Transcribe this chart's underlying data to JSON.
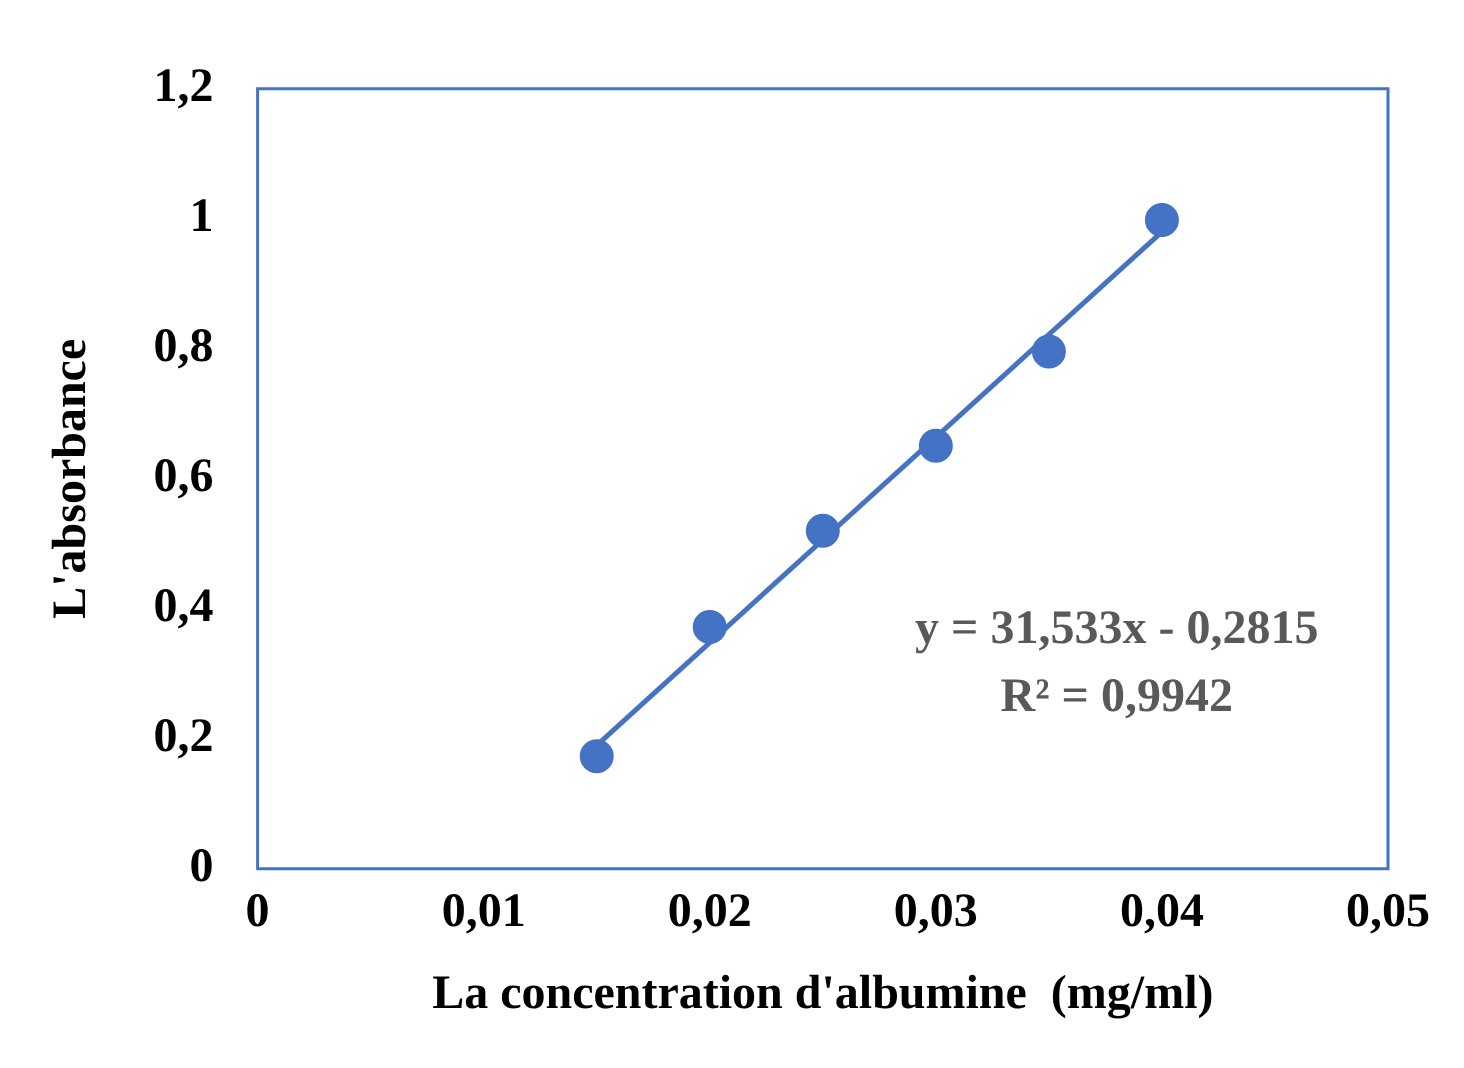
{
  "chart_data": {
    "type": "scatter",
    "xlabel": "La concentration d'albumine  (mg/ml)",
    "ylabel": "L'absorbance",
    "series": [
      {
        "type": "scatter",
        "color": "#4472c4",
        "x": [
          0.015,
          0.02,
          0.025,
          0.03,
          0.035,
          0.04
        ],
        "values": [
          0.173,
          0.372,
          0.52,
          0.651,
          0.796,
          0.998
        ],
        "marker": "circle"
      },
      {
        "type": "line",
        "color": "#4472c4",
        "x": [
          0.015,
          0.04
        ],
        "values": [
          0.19,
          0.98
        ],
        "marker": "none",
        "line_style": "solid"
      }
    ],
    "xlim": [
      0,
      0.05
    ],
    "xticks": [
      0,
      {
        "value": 0.01,
        "label": "0,01"
      },
      {
        "value": 0.02,
        "label": "0,02"
      },
      {
        "value": 0.03,
        "label": "0,03"
      },
      {
        "value": 0.04,
        "label": "0,04"
      },
      {
        "value": 0.05,
        "label": "0,05"
      }
    ],
    "ylim": [
      0,
      1.2
    ],
    "yticks": [
      0,
      {
        "value": 0.2,
        "label": "0,2"
      },
      {
        "value": 0.4,
        "label": "0,4"
      },
      {
        "value": 0.6,
        "label": "0,6"
      },
      {
        "value": 0.8,
        "label": "0,8"
      },
      1,
      {
        "value": 1.2,
        "label": "1,2"
      }
    ],
    "annotations": [
      "y = 31,533x - 0,2815",
      "R² = 0,9942"
    ],
    "grid": false,
    "legend": false
  }
}
